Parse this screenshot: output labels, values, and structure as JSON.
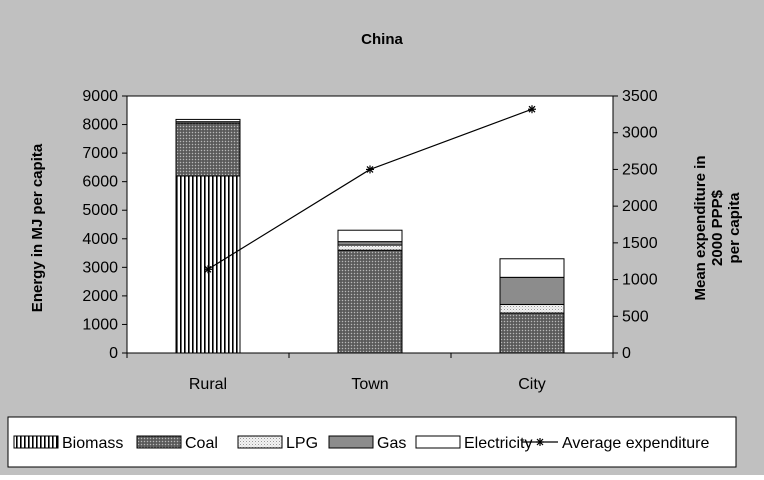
{
  "chart_data": {
    "type": "bar",
    "title": "China",
    "categories": [
      "Rural",
      "Town",
      "City"
    ],
    "ylabel": "Energy in MJ per capita",
    "y2label_lines": [
      "Mean expenditure in",
      "2000 PPP$",
      "per capita"
    ],
    "ylim": [
      0,
      9000
    ],
    "y2lim": [
      0,
      3500
    ],
    "yticks": [
      "0",
      "1000",
      "2000",
      "3000",
      "4000",
      "5000",
      "6000",
      "7000",
      "8000",
      "9000"
    ],
    "y2ticks": [
      "0",
      "500",
      "1000",
      "1500",
      "2000",
      "2500",
      "3000",
      "3500"
    ],
    "series": [
      {
        "name": "Biomass",
        "values": [
          6200,
          0,
          0
        ],
        "pattern": "vlines"
      },
      {
        "name": "Coal",
        "values": [
          1850,
          3600,
          1400
        ],
        "pattern": "dots"
      },
      {
        "name": "LPG",
        "values": [
          50,
          180,
          300
        ],
        "pattern": "light"
      },
      {
        "name": "Gas",
        "values": [
          0,
          120,
          950
        ],
        "pattern": "gray"
      },
      {
        "name": "Electricity",
        "values": [
          80,
          400,
          650
        ],
        "pattern": "white"
      }
    ],
    "line_series": {
      "name": "Average expenditure",
      "axis": "right",
      "values": [
        1140,
        2500,
        3320
      ]
    },
    "grid": false,
    "legend_position": "bottom"
  }
}
